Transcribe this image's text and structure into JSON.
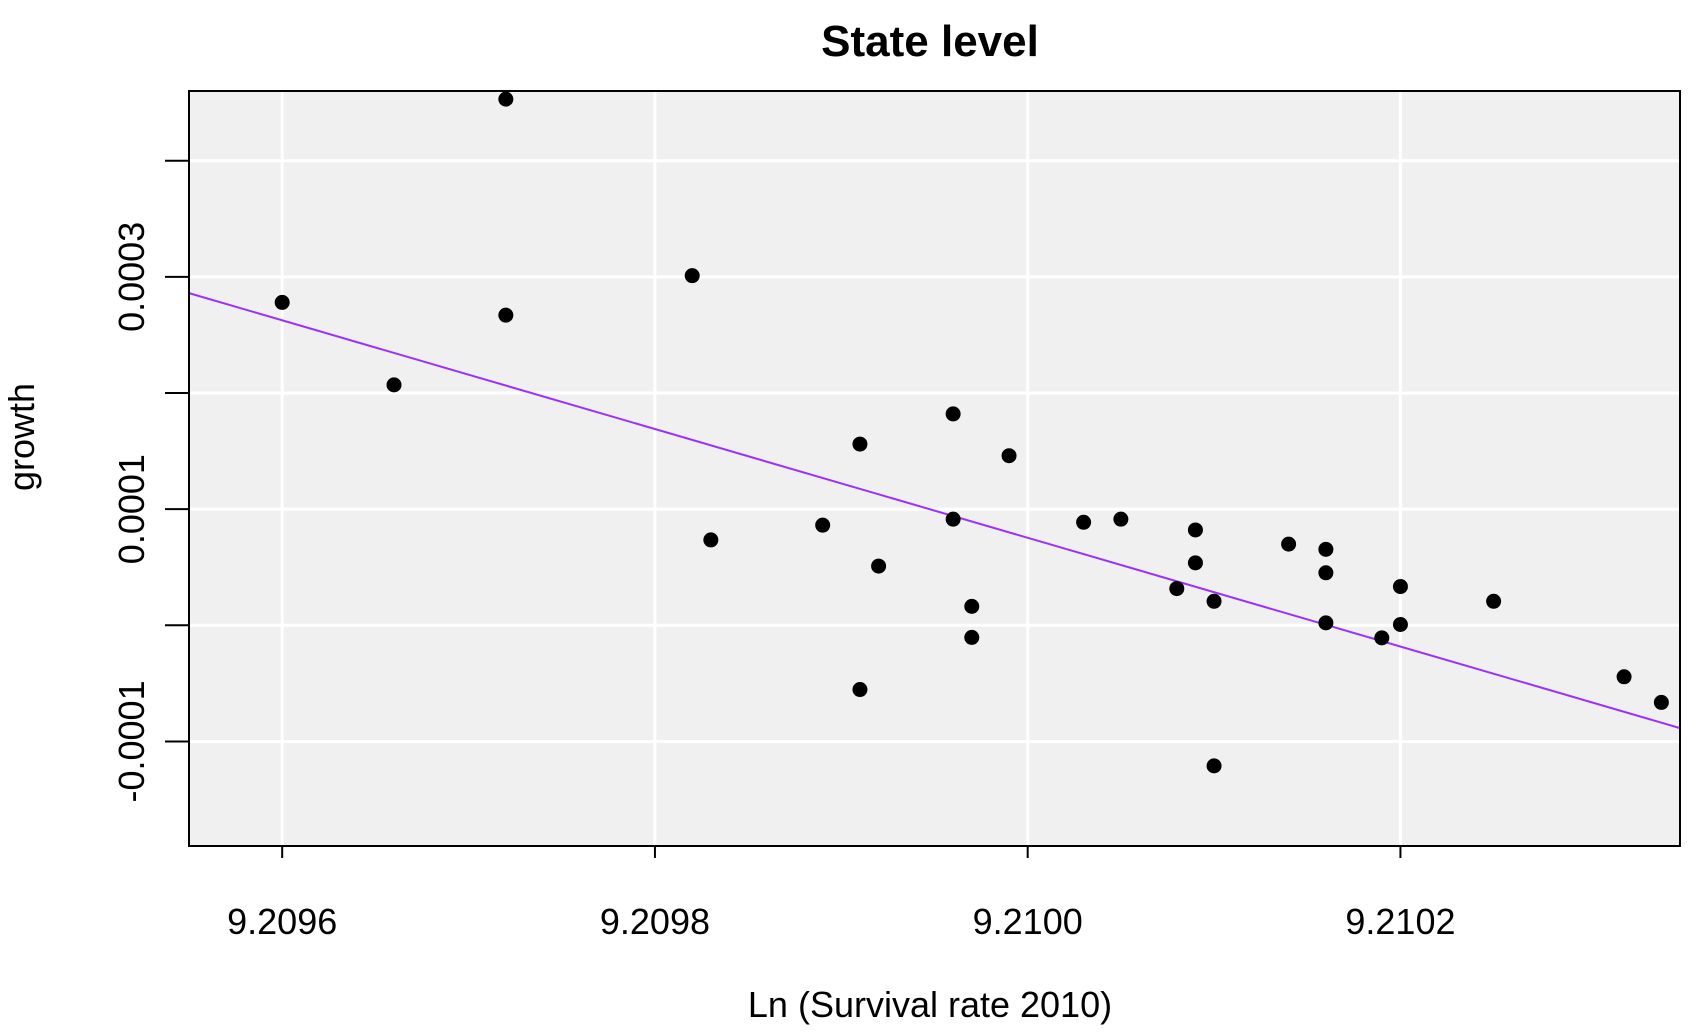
{
  "chart_data": {
    "type": "scatter",
    "title": "State level",
    "xlabel": "Ln (Survival rate 2010)",
    "ylabel": "growth",
    "xlim": [
      9.20955,
      9.21035
    ],
    "ylim": [
      -0.00019,
      0.00046
    ],
    "grid": true,
    "x_ticks": [
      9.2096,
      9.2098,
      9.21,
      9.2102
    ],
    "x_tick_labels": [
      "9.2096",
      "9.2098",
      "9.2100",
      "9.2102"
    ],
    "x_minor_ticks": [],
    "y_ticks": [
      -0.0001,
      0.0,
      0.0001,
      0.0002,
      0.0003,
      0.0004
    ],
    "y_tick_labels": [
      "-0.0001",
      "",
      "0.0001",
      "",
      "0.0003",
      ""
    ],
    "background_color": "#f0f0f0",
    "grid_color": "#ffffff",
    "point_color": "#000000",
    "fit_line_color": "#9b30ff",
    "points": [
      {
        "x": 9.2096,
        "y": 0.000278
      },
      {
        "x": 9.20966,
        "y": 0.000207
      },
      {
        "x": 9.20972,
        "y": 0.000267
      },
      {
        "x": 9.20972,
        "y": 0.000453
      },
      {
        "x": 9.20982,
        "y": 0.000301
      },
      {
        "x": 9.20983,
        "y": 7.35e-05
      },
      {
        "x": 9.20989,
        "y": 8.62e-05
      },
      {
        "x": 9.20991,
        "y": 0.000156
      },
      {
        "x": 9.20992,
        "y": 5.1e-05
      },
      {
        "x": 9.20991,
        "y": -5.53e-05
      },
      {
        "x": 9.20996,
        "y": 0.000182
      },
      {
        "x": 9.20996,
        "y": 9.14e-05
      },
      {
        "x": 9.20997,
        "y": 1.63e-05
      },
      {
        "x": 9.20997,
        "y": -1.04e-05
      },
      {
        "x": 9.20999,
        "y": 0.000146
      },
      {
        "x": 9.21003,
        "y": 8.87e-05
      },
      {
        "x": 9.21005,
        "y": 9.14e-05
      },
      {
        "x": 9.21009,
        "y": 8.21e-05
      },
      {
        "x": 9.21009,
        "y": 5.38e-05
      },
      {
        "x": 9.21008,
        "y": 3.16e-05
      },
      {
        "x": 9.2101,
        "y": 2.07e-05
      },
      {
        "x": 9.2101,
        "y": -0.000121
      },
      {
        "x": 9.21014,
        "y": 6.99e-05
      },
      {
        "x": 9.21016,
        "y": 6.54e-05
      },
      {
        "x": 9.21016,
        "y": 4.52e-05
      },
      {
        "x": 9.21016,
        "y": 2.1e-06
      },
      {
        "x": 9.21019,
        "y": -1.08e-05
      },
      {
        "x": 9.2102,
        "y": 7e-07
      },
      {
        "x": 9.2102,
        "y": 3.34e-05
      },
      {
        "x": 9.21025,
        "y": 2.07e-05
      },
      {
        "x": 9.21032,
        "y": -4.43e-05
      },
      {
        "x": 9.21034,
        "y": -6.64e-05
      }
    ],
    "fit_line": [
      {
        "x": 9.20955,
        "y": 0.000286
      },
      {
        "x": 9.21035,
        "y": -8.85e-05
      }
    ]
  }
}
